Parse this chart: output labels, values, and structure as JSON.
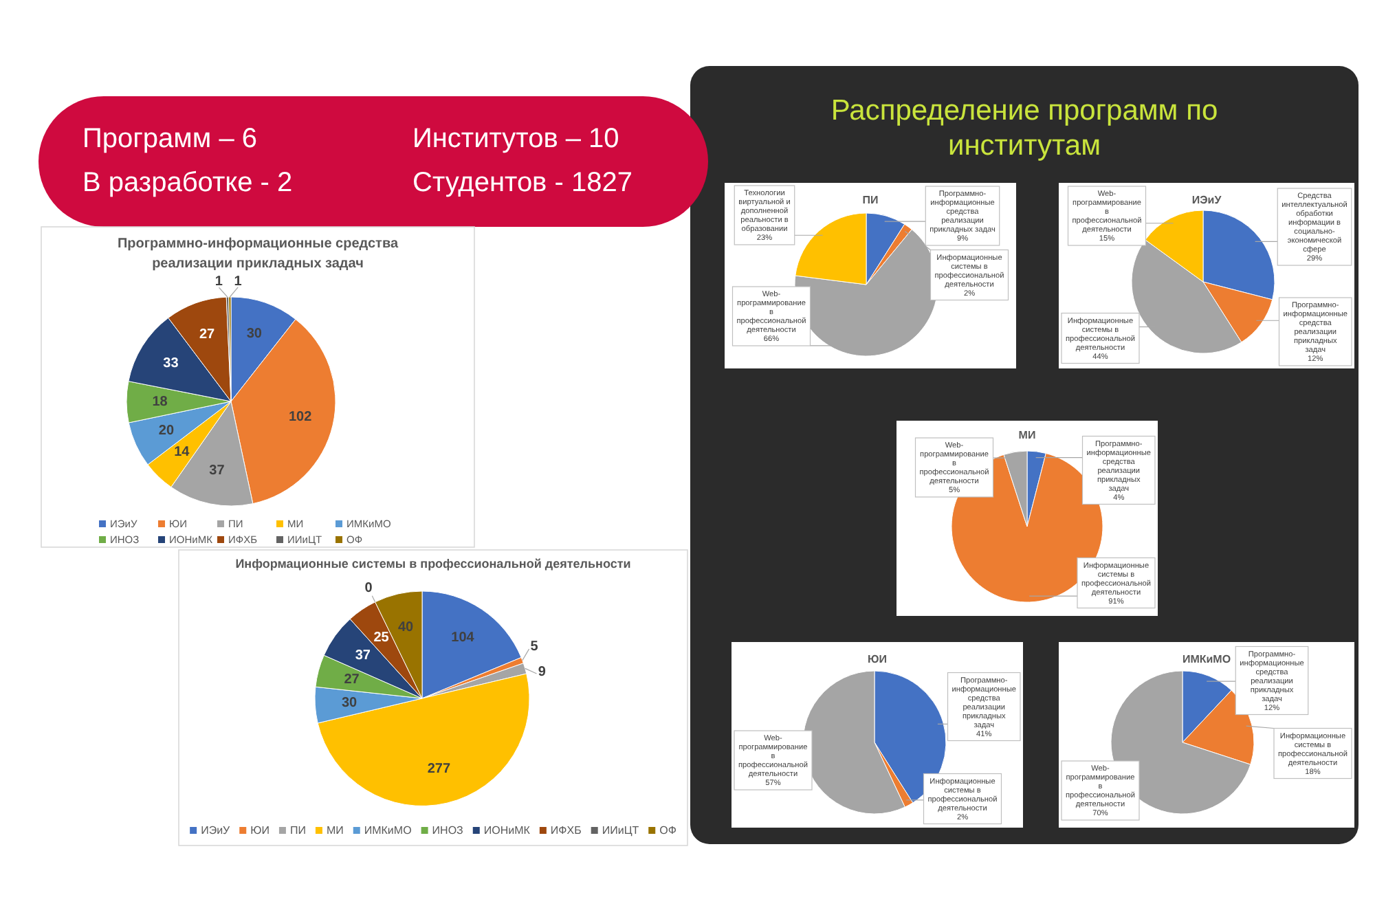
{
  "chart_data": [
    {
      "type": "other",
      "annotations": [
        "Программ – 6",
        "Институтов – 10",
        "В разработке - 2",
        "Студентов - 1827"
      ]
    },
    {
      "type": "pie",
      "title": "Программно-информационные средства реализации прикладных задач",
      "categories": [
        "ИЭиУ",
        "ЮИ",
        "ПИ",
        "МИ",
        "ИМКиМО",
        "ИНОЗ",
        "ИОНиМК",
        "ИФХБ",
        "ИИиЦТ",
        "ОФ"
      ],
      "values": [
        30,
        102,
        37,
        14,
        20,
        18,
        33,
        27,
        1,
        1
      ],
      "colors": [
        "#4472c4",
        "#ed7d31",
        "#a5a5a5",
        "#ffc000",
        "#5b9bd5",
        "#70ad47",
        "#264478",
        "#9e480e",
        "#636363",
        "#997300"
      ],
      "data_labels": true,
      "legend": "bottom"
    },
    {
      "type": "pie",
      "title": "Информационные системы в профессиональной деятельности",
      "categories": [
        "ИЭиУ",
        "ЮИ",
        "ПИ",
        "МИ",
        "ИМКиМО",
        "ИНОЗ",
        "ИОНиМК",
        "ИФХБ",
        "ИИиЦТ",
        "ОФ"
      ],
      "values": [
        104,
        5,
        9,
        277,
        30,
        27,
        37,
        25,
        0,
        40
      ],
      "colors": [
        "#4472c4",
        "#ed7d31",
        "#a5a5a5",
        "#ffc000",
        "#5b9bd5",
        "#70ad47",
        "#264478",
        "#9e480e",
        "#636363",
        "#997300"
      ],
      "data_labels": true,
      "legend": "bottom",
      "annotations": [
        "0"
      ]
    },
    {
      "type": "other",
      "title": "Распределение программ по институтам"
    },
    {
      "type": "pie",
      "title": "ПИ",
      "categories": [
        "Программно-информационные средства реализации прикладных задач",
        "Информационные системы в профессиональной деятельности",
        "Web-программирование в профессиональной деятельности",
        "Технологии виртуальной и дополненной реальности в образовании"
      ],
      "values": [
        9,
        2,
        66,
        23
      ],
      "value_labels": [
        "9%",
        "2%",
        "66%",
        "23%"
      ],
      "colors": [
        "#4472c4",
        "#ed7d31",
        "#a5a5a5",
        "#ffc000"
      ]
    },
    {
      "type": "pie",
      "title": "ИЭиУ",
      "categories": [
        "Средства интеллектуальной обработки информации в социально-экономической сфере",
        "Программно-информационные средства реализации прикладных задач",
        "Информационные системы в профессиональной деятельности",
        "Web-программирование в профессиональной деятельности"
      ],
      "values": [
        29,
        12,
        44,
        15
      ],
      "value_labels": [
        "29%",
        "12%",
        "44%",
        "15%"
      ],
      "colors": [
        "#4472c4",
        "#ed7d31",
        "#a5a5a5",
        "#ffc000"
      ]
    },
    {
      "type": "pie",
      "title": "МИ",
      "categories": [
        "Программно-информационные средства реализации прикладных задач",
        "Информационные системы в профессиональной деятельности",
        "Web-программирование в профессиональной деятельности"
      ],
      "values": [
        4,
        91,
        5
      ],
      "value_labels": [
        "4%",
        "91%",
        "5%"
      ],
      "colors": [
        "#4472c4",
        "#ed7d31",
        "#a5a5a5"
      ]
    },
    {
      "type": "pie",
      "title": "ЮИ",
      "categories": [
        "Программно-информационные средства реализации прикладных задач",
        "Информационные системы в профессиональной деятельности",
        "Web-программирование в профессиональной деятельности"
      ],
      "values": [
        41,
        2,
        57
      ],
      "value_labels": [
        "41%",
        "2%",
        "57%"
      ],
      "colors": [
        "#4472c4",
        "#ed7d31",
        "#a5a5a5"
      ]
    },
    {
      "type": "pie",
      "title": "ИМКиМО",
      "categories": [
        "Программно-информационные средства реализации прикладных задач",
        "Информационные системы в профессиональной деятельности",
        "Web-программирование в профессиональной деятельности"
      ],
      "values": [
        12,
        18,
        70
      ],
      "value_labels": [
        "12%",
        "18%",
        "70%"
      ],
      "colors": [
        "#4472c4",
        "#ed7d31",
        "#a5a5a5"
      ]
    }
  ]
}
